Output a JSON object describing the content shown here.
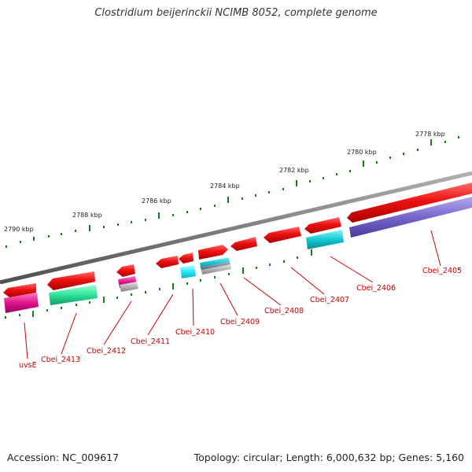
{
  "title": "Clostridium beijerinckii NCIMB 8052, complete genome",
  "footer": {
    "accession": "Accession: NC_009617",
    "topology": "Topology: circular; Length: 6,000,632 bp; Genes: 5,160"
  },
  "ruler_labels": [
    "2778 kbp",
    "2780 kbp",
    "2782 kbp",
    "2784 kbp",
    "2786 kbp",
    "2788 kbp",
    "2790 kbp"
  ],
  "gene_labels": [
    "Cbei_2405",
    "Cbei_2406",
    "Cbei_2407",
    "Cbei_2408",
    "Cbei_2409",
    "Cbei_2410",
    "Cbei_2411",
    "Cbei_2412",
    "Cbei_2413",
    "uvsE"
  ],
  "colors": {
    "backbone": "#808080",
    "ruler": "#1a7a1a",
    "gene": "#ee1111",
    "label": "#cc0000",
    "cog_magenta": "#e0148c",
    "cog_green": "#2ee39a",
    "cog_cyan": "#14c8d2",
    "cog_purple": "#7766cc",
    "cog_gray": "#b4b4b4",
    "cog_blue_gray": "#6e8aa0",
    "cog_bright_cyan": "#20e8f8"
  }
}
